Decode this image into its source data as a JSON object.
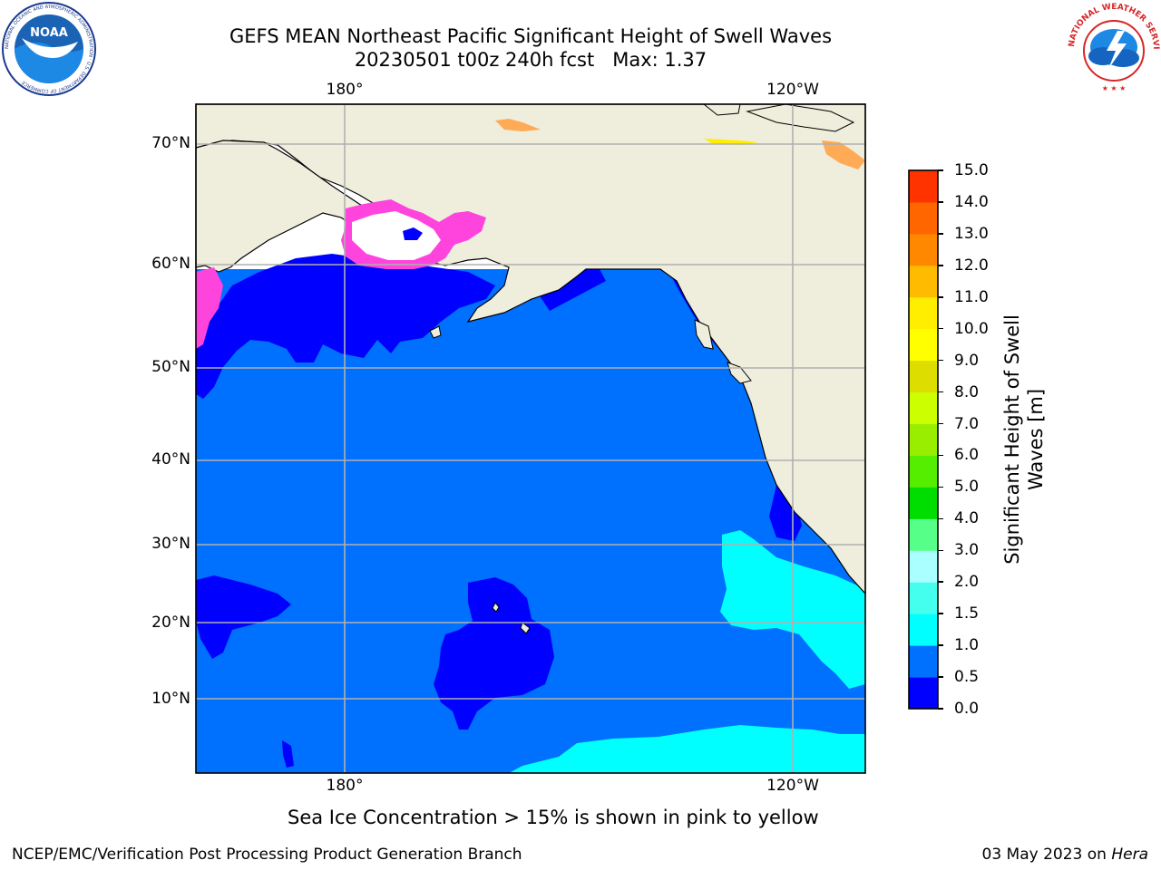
{
  "title": {
    "line1": "GEFS MEAN Northeast Pacific Significant Height of Swell Waves",
    "line2": "20230501 t00z 240h fcst   Max: 1.37"
  },
  "map": {
    "lon_labels": [
      "180°",
      "120°W"
    ],
    "lat_labels": [
      "70°N",
      "60°N",
      "50°N",
      "40°N",
      "30°N",
      "20°N",
      "10°N"
    ],
    "colors": {
      "land": "#efeddc",
      "ocean_main": "#0070ff",
      "ocean_low": "#0000ff",
      "ocean_mid": "#00ffff",
      "ice_pink": "#ff44dd",
      "ice_orange": "#ffaa55",
      "ice_yellow": "#ffee00",
      "grid": "#b0b0b0"
    }
  },
  "colorbar": {
    "ticks": [
      "15.0",
      "14.0",
      "13.0",
      "12.0",
      "11.0",
      "10.0",
      "9.0",
      "8.0",
      "7.0",
      "6.0",
      "5.0",
      "4.0",
      "3.0",
      "2.0",
      "1.5",
      "1.0",
      "0.5",
      "0.0"
    ],
    "colors": [
      "#0000ff",
      "#0070ff",
      "#00ffff",
      "#44ffee",
      "#aaffff",
      "#55ff88",
      "#00dd00",
      "#55ee00",
      "#99ee00",
      "#ccff00",
      "#dddd00",
      "#ffff00",
      "#ffee00",
      "#ffbb00",
      "#ff8800",
      "#ff6600",
      "#ff3300",
      "#ff0000"
    ],
    "label": "Significant Height of Swell\nWaves [m]"
  },
  "note": "Sea Ice Concentration > 15% is shown in pink to yellow",
  "footer": {
    "left": "NCEP/EMC/Verification Post Processing Product Generation Branch",
    "date": "03 May 2023 on ",
    "machine": "Hera"
  },
  "logos": {
    "noaa": "NOAA",
    "noaa_ring": "NATIONAL OCEANIC AND ATMOSPHERIC ADMINISTRATION · U.S. DEPARTMENT OF COMMERCE",
    "nws_ring": "NATIONAL WEATHER SERVICE"
  }
}
